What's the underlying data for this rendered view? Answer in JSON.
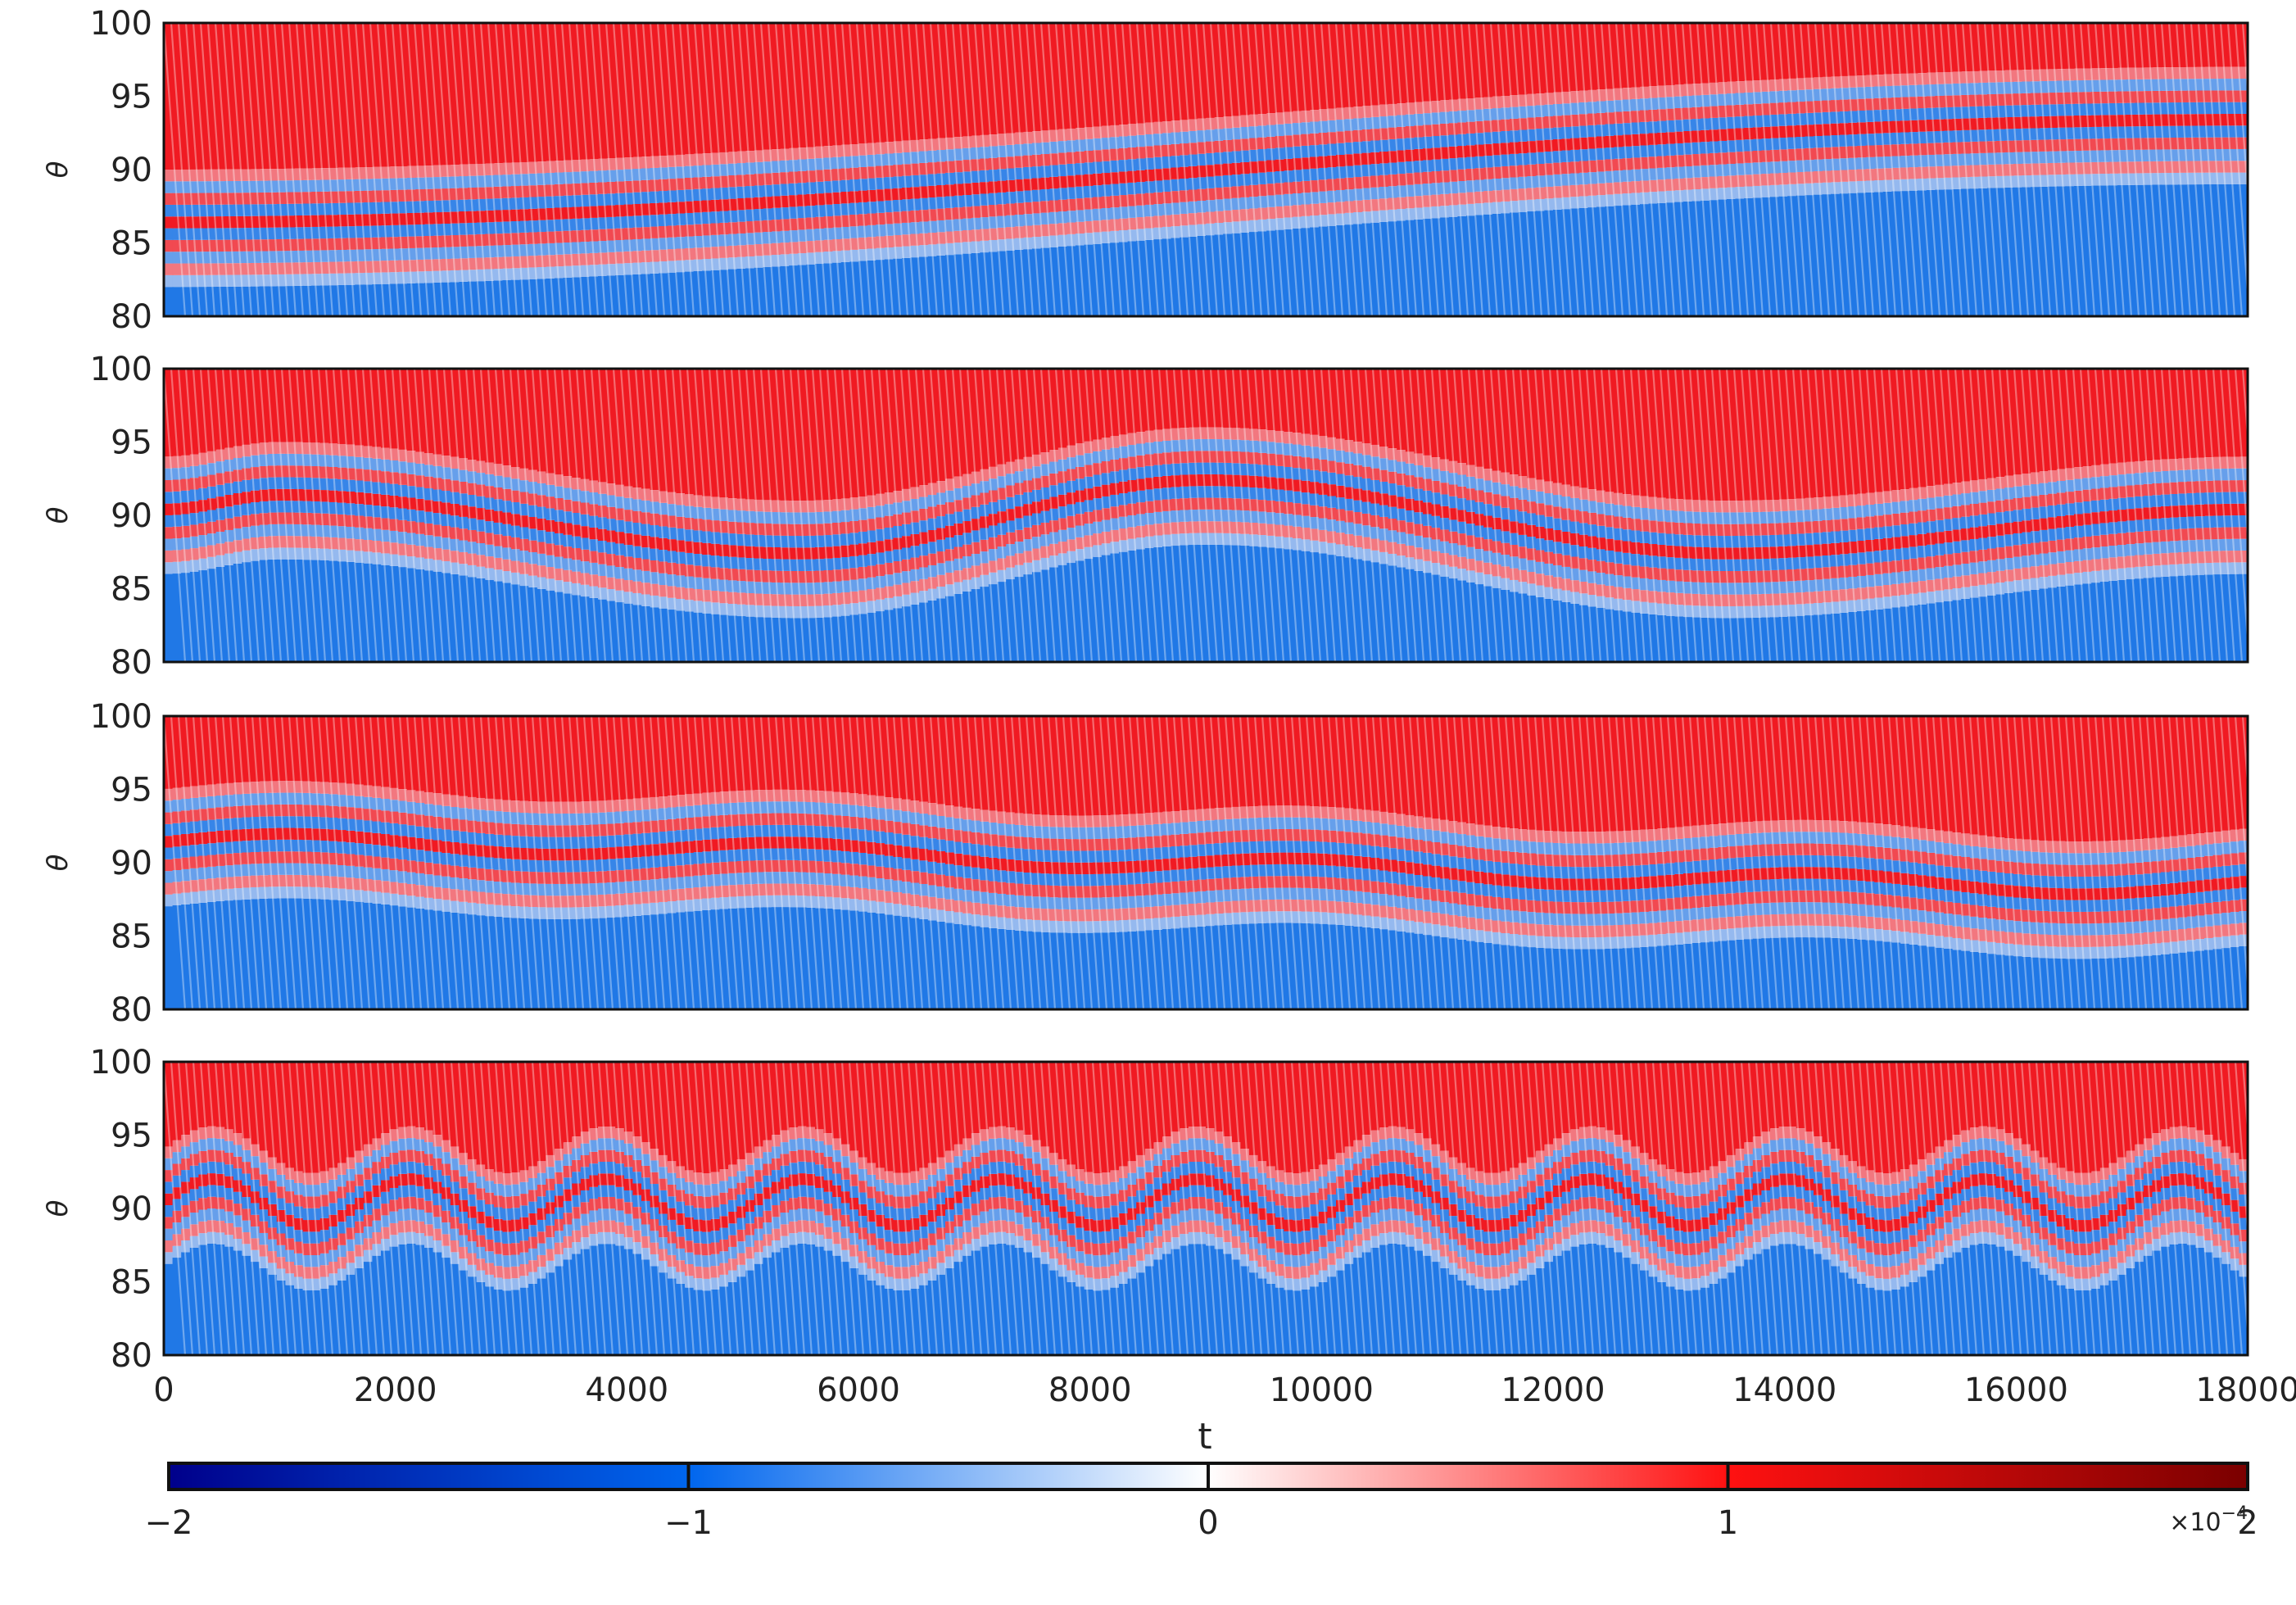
{
  "chart_data": {
    "type": "heatmap",
    "layout": "4 panels stacked vertically, shared x axis, shared horizontal colorbar below",
    "panels": [
      {
        "ylabel": "θ",
        "ylim": [
          80,
          100
        ],
        "yticks": [
          "80",
          "85",
          "90",
          "95",
          "100"
        ],
        "pattern": "diagonal bands drifting upward steadily over time",
        "band_offset": [
          {
            "t": 0,
            "theta": 86
          },
          {
            "t": 18000,
            "theta": 93
          }
        ]
      },
      {
        "ylabel": "θ",
        "ylim": [
          80,
          100
        ],
        "yticks": [
          "80",
          "85",
          "90",
          "95",
          "100"
        ],
        "pattern": "large slow undulation of the central band",
        "band_offset": [
          {
            "t": 0,
            "theta": 90
          },
          {
            "t": 1000,
            "theta": 91
          },
          {
            "t": 5500,
            "theta": 87
          },
          {
            "t": 9000,
            "theta": 92
          },
          {
            "t": 13500,
            "theta": 87
          },
          {
            "t": 18000,
            "theta": 90
          }
        ]
      },
      {
        "ylabel": "θ",
        "ylim": [
          80,
          100
        ],
        "yticks": [
          "80",
          "85",
          "90",
          "95",
          "100"
        ],
        "pattern": "bands drifting slowly downward with small ripples",
        "band_offset": [
          {
            "t": 0,
            "theta": 91
          },
          {
            "t": 18000,
            "theta": 88
          }
        ]
      },
      {
        "ylabel": "θ",
        "ylim": [
          80,
          100
        ],
        "yticks": [
          "80",
          "85",
          "90",
          "95",
          "100"
        ],
        "pattern": "faster periodic undulation, period ~1700",
        "band_offset": [
          {
            "t": 0,
            "theta": 90
          },
          {
            "t": 18000,
            "theta": 90
          }
        ]
      }
    ],
    "xlabel": "t",
    "xlim": [
      0,
      18000
    ],
    "xticks": [
      "0",
      "2000",
      "4000",
      "6000",
      "8000",
      "10000",
      "12000",
      "14000",
      "16000",
      "18000"
    ],
    "colorbar": {
      "orientation": "horizontal",
      "colormap": "seismic blue-white-red",
      "range": [
        -2,
        2
      ],
      "ticks": [
        "−2",
        "−1",
        "0",
        "1",
        "2"
      ],
      "exponent_label": "×10",
      "exponent_power": "−4",
      "colors": [
        "#00008b",
        "#0066ee",
        "#ffffff",
        "#ff1111",
        "#7a0000"
      ]
    }
  }
}
